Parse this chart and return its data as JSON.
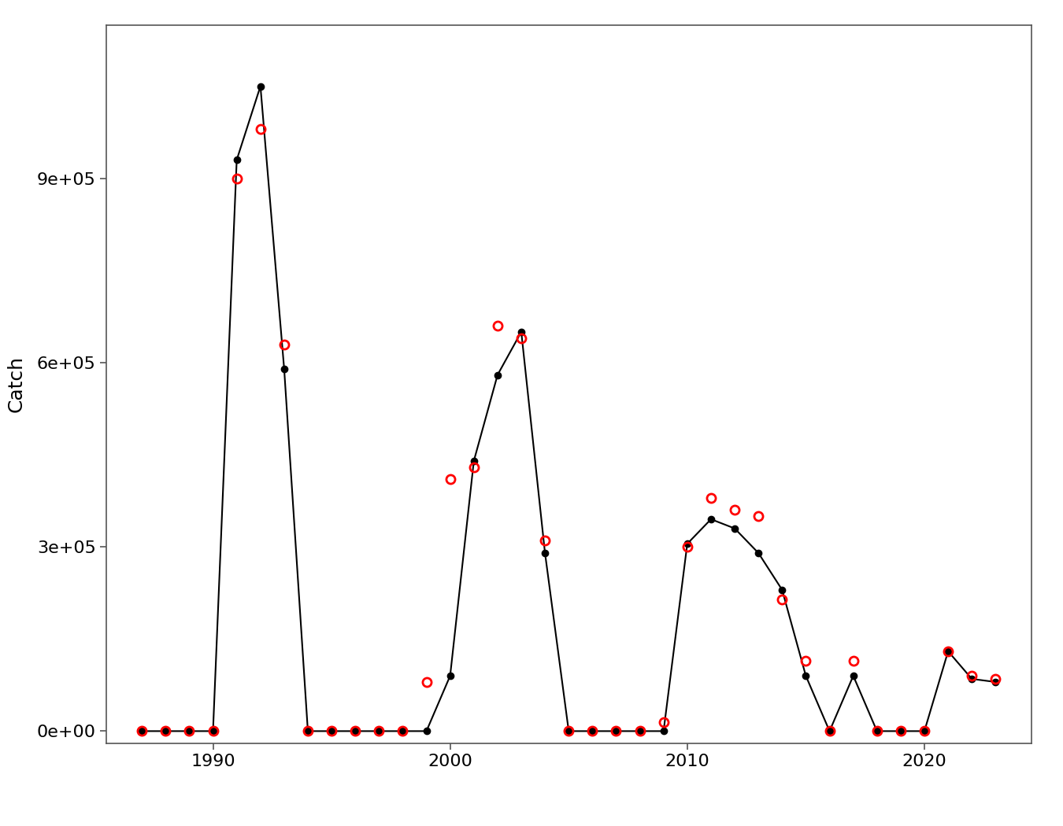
{
  "title": "",
  "xlabel": "",
  "ylabel": "Catch",
  "years": [
    1987,
    1988,
    1989,
    1990,
    1991,
    1992,
    1993,
    1994,
    1995,
    1996,
    1997,
    1998,
    1999,
    2000,
    2001,
    2002,
    2003,
    2004,
    2005,
    2006,
    2007,
    2008,
    2009,
    2010,
    2011,
    2012,
    2013,
    2014,
    2015,
    2016,
    2017,
    2018,
    2019,
    2020,
    2021,
    2022,
    2023
  ],
  "catch": [
    0,
    0,
    0,
    0,
    930000,
    1050000,
    590000,
    0,
    0,
    0,
    0,
    0,
    0,
    90000,
    440000,
    580000,
    650000,
    290000,
    0,
    0,
    0,
    0,
    0,
    305000,
    345000,
    330000,
    290000,
    230000,
    90000,
    0,
    90000,
    0,
    0,
    0,
    130000,
    85000,
    80000
  ],
  "quota": [
    0,
    0,
    0,
    0,
    900000,
    980000,
    630000,
    0,
    0,
    0,
    0,
    0,
    80000,
    410000,
    430000,
    660000,
    640000,
    310000,
    0,
    0,
    0,
    0,
    15000,
    300000,
    380000,
    360000,
    350000,
    215000,
    115000,
    0,
    115000,
    0,
    0,
    0,
    130000,
    90000,
    85000
  ],
  "catch_color": "#000000",
  "quota_color": "#FF0000",
  "line_color": "#000000",
  "line_width": 1.5,
  "catch_marker_size": 6,
  "quota_marker_size": 8,
  "background_color": "#FFFFFF",
  "ylim": [
    -20000,
    1150000
  ],
  "xlim": [
    1985.5,
    2024.5
  ],
  "ylabel_fontsize": 18,
  "tick_fontsize": 16
}
